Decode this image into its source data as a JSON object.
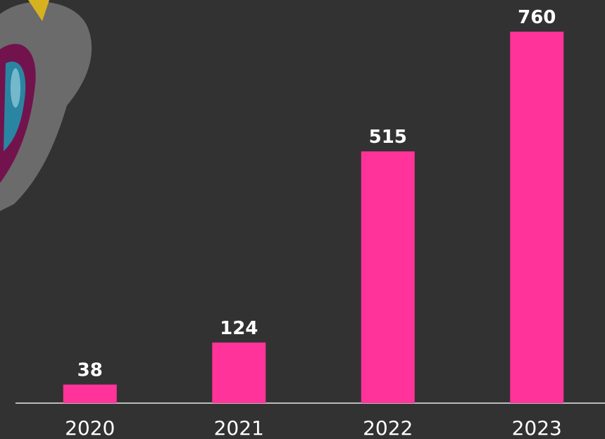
{
  "chart_data": {
    "type": "bar",
    "categories": [
      "2020",
      "2021",
      "2022",
      "2023"
    ],
    "values": [
      38,
      124,
      515,
      760
    ],
    "color": "#ff3399",
    "value_labels_shown": true
  }
}
